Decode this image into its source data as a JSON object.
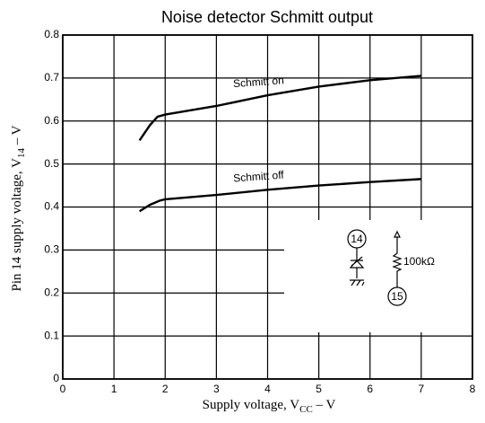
{
  "chart_data": {
    "type": "line",
    "title": "Noise detector Schmitt output",
    "xlabel": {
      "text": "Supply voltage, V",
      "sub": "CC",
      "tail": " – V"
    },
    "ylabel": {
      "text": "Pin 14 supply voltage, V",
      "sub": "14",
      "tail": " – V"
    },
    "series": [
      {
        "name": "Schmitt on",
        "color": "#000000",
        "x": [
          1.5,
          1.7,
          1.85,
          2,
          3,
          4,
          5,
          6,
          7
        ],
        "values": [
          0.555,
          0.59,
          0.61,
          0.615,
          0.635,
          0.66,
          0.68,
          0.695,
          0.705
        ]
      },
      {
        "name": "Schmitt off",
        "color": "#000000",
        "x": [
          1.5,
          1.7,
          1.9,
          2,
          3,
          4,
          5,
          6,
          7
        ],
        "values": [
          0.39,
          0.405,
          0.415,
          0.418,
          0.428,
          0.44,
          0.45,
          0.458,
          0.465
        ]
      }
    ],
    "annotations": [
      "14",
      "15",
      "100kΩ"
    ],
    "xlim": [
      0,
      8
    ],
    "xticks": [
      0,
      1,
      2,
      3,
      4,
      5,
      6,
      7,
      8
    ],
    "ylim": [
      0,
      0.8
    ],
    "yticks": [
      0,
      0.1,
      0.2,
      0.3,
      0.4,
      0.5,
      0.6,
      0.7,
      0.8
    ],
    "grid": true
  }
}
